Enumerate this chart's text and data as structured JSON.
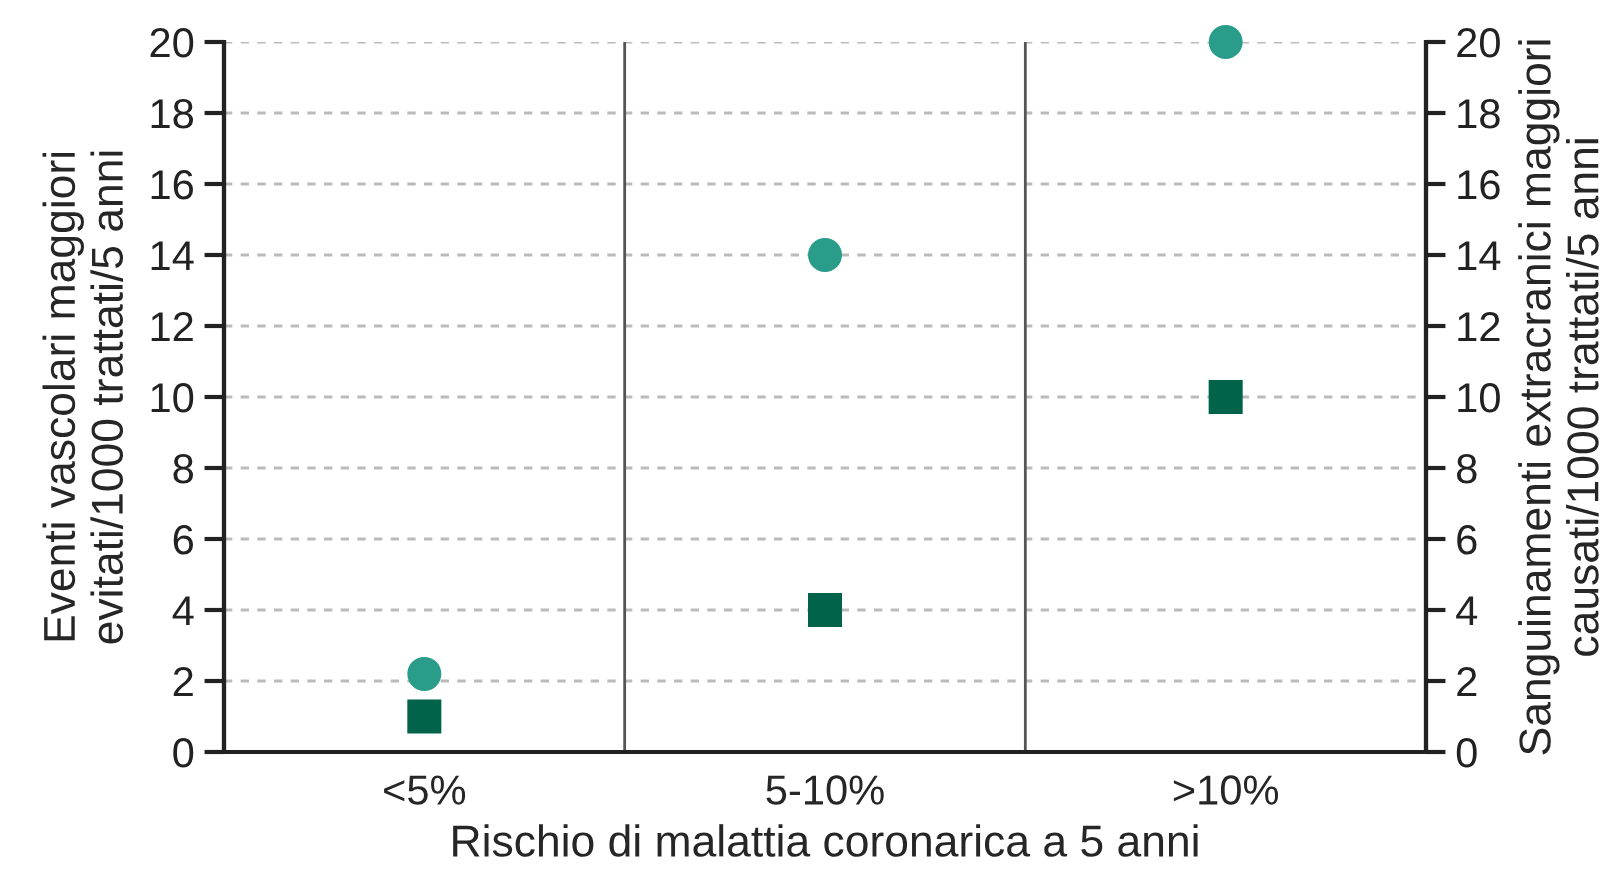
{
  "chart_data": {
    "type": "scatter",
    "xlabel": "Rischio di malattia coronarica a 5 anni",
    "ylabel": "Eventi vascolari maggiori\nevitati/1000 trattati/5 anni",
    "y2label": "Sanguinamenti extracranici maggiori\ncausati/1000 trattati/5 anni",
    "categories": [
      "<5%",
      "5-10%",
      ">10%"
    ],
    "series": [
      {
        "color": "#2a9d8a",
        "marker": "circle",
        "values": [
          2.2,
          14,
          20
        ]
      },
      {
        "color": "#00634a",
        "marker": "square",
        "axis": "y2",
        "values": [
          1,
          4,
          10
        ]
      }
    ],
    "ylim": [
      0,
      20
    ],
    "yticks": [
      0,
      2,
      4,
      6,
      8,
      10,
      12,
      14,
      16,
      18,
      20
    ],
    "y2lim": [
      0,
      20
    ],
    "y2ticks": [
      0,
      2,
      4,
      6,
      8,
      10,
      12,
      14,
      16,
      18,
      20
    ],
    "grid": true
  }
}
